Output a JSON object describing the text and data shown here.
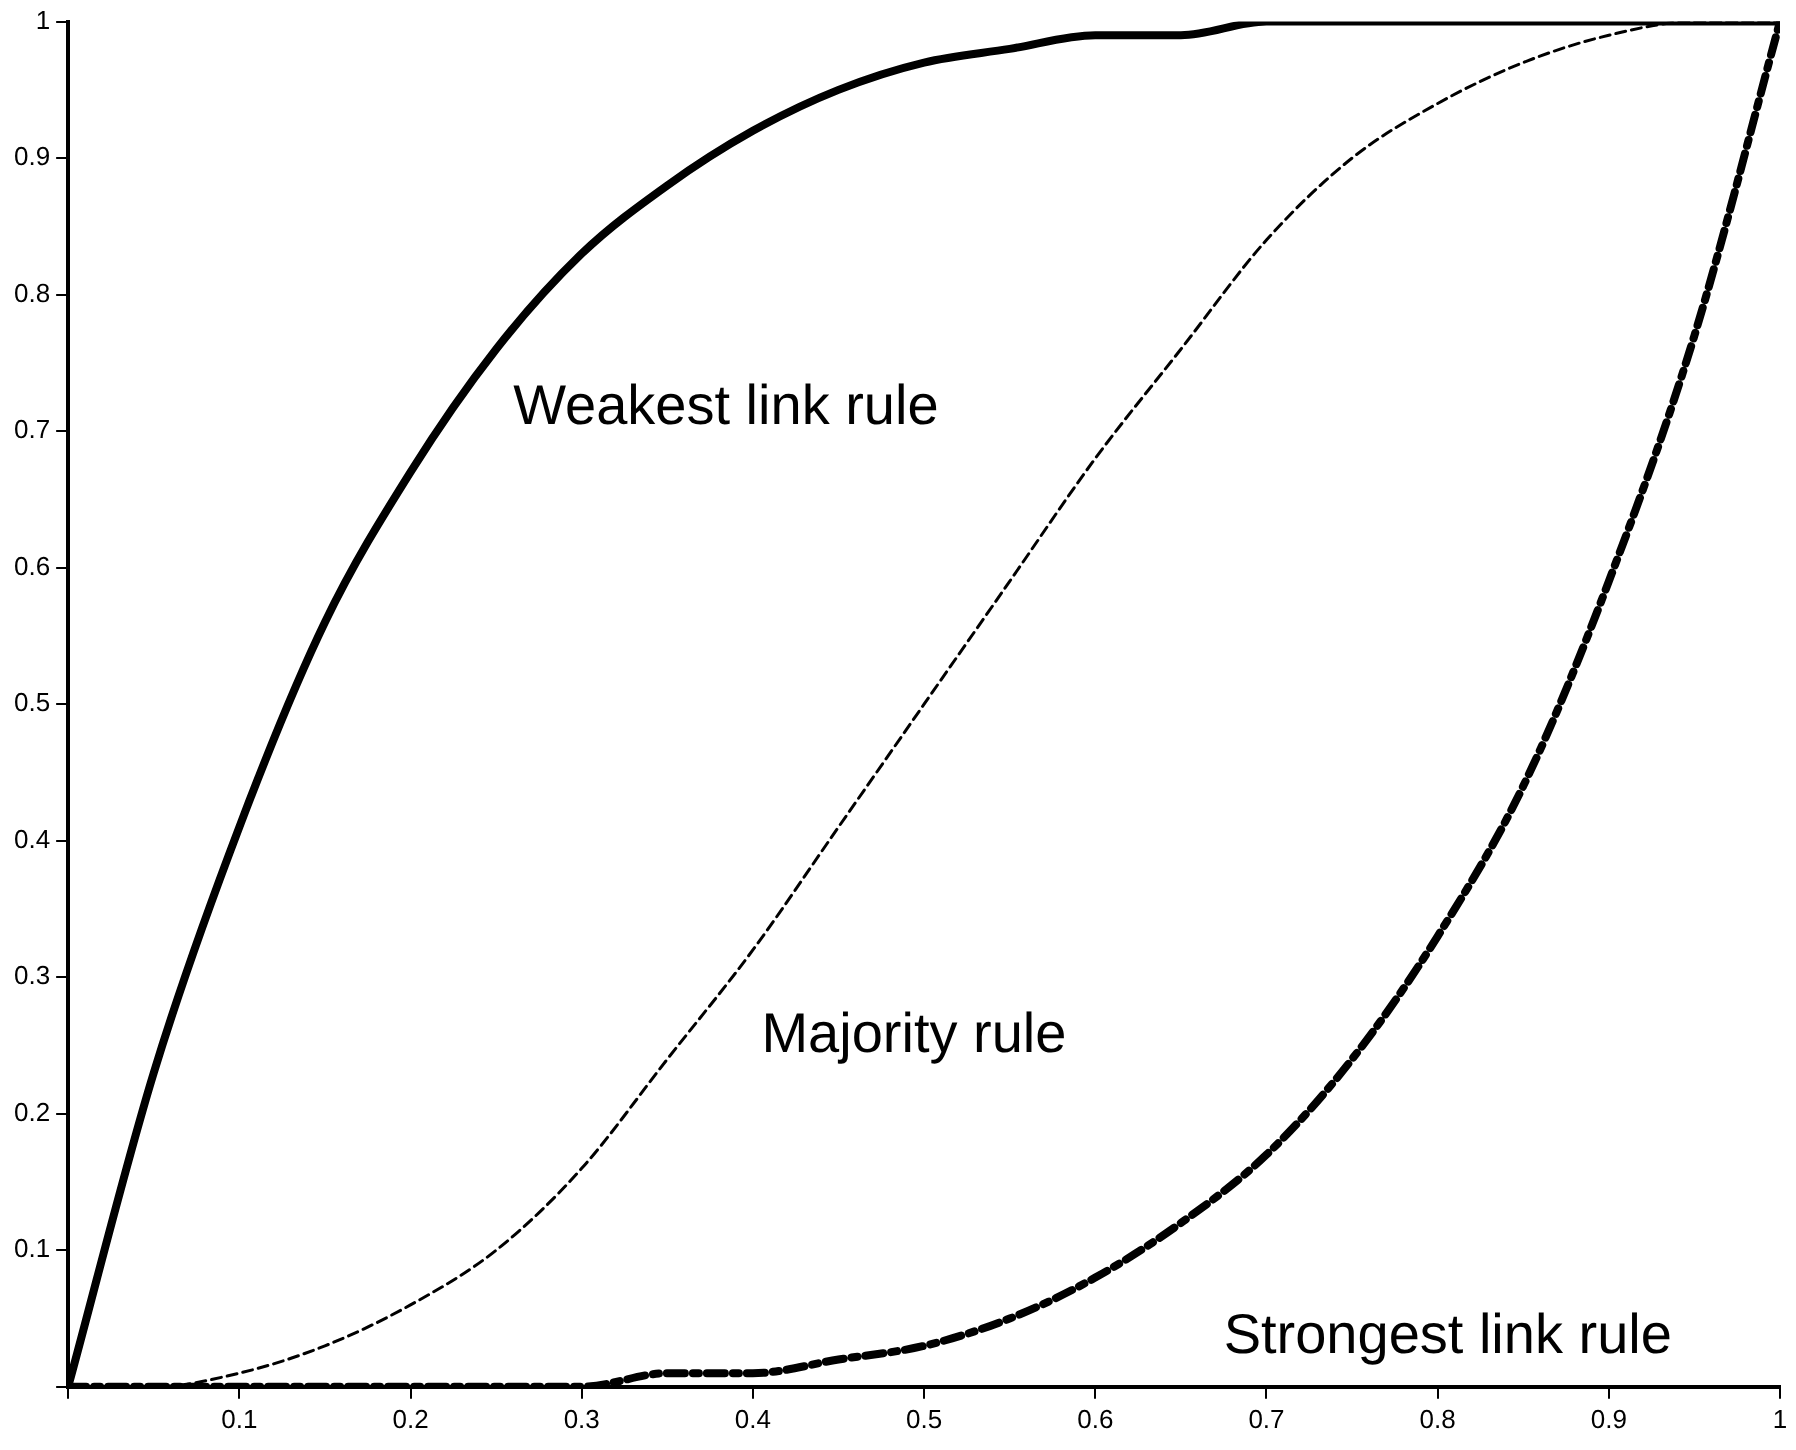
{
  "chart_data": {
    "type": "line",
    "x": [
      0,
      0.05,
      0.1,
      0.15,
      0.2,
      0.25,
      0.3,
      0.35,
      0.4,
      0.45,
      0.5,
      0.55,
      0.6,
      0.65,
      0.7,
      0.75,
      0.8,
      0.85,
      0.9,
      0.95,
      1
    ],
    "series": [
      {
        "name": "Weakest link rule",
        "color": "#000000",
        "line_style": "solid",
        "values": [
          0,
          0.23,
          0.41,
          0.56,
          0.67,
          0.76,
          0.83,
          0.88,
          0.92,
          0.95,
          0.97,
          0.98,
          0.99,
          0.99,
          1,
          1,
          1,
          1,
          1,
          1,
          1
        ]
      },
      {
        "name": "Majority rule",
        "color": "#000000",
        "line_style": "dashed",
        "values": [
          0,
          0,
          0.01,
          0.03,
          0.06,
          0.1,
          0.16,
          0.24,
          0.32,
          0.41,
          0.5,
          0.59,
          0.68,
          0.76,
          0.84,
          0.9,
          0.94,
          0.97,
          0.99,
          1,
          1
        ]
      },
      {
        "name": "Strongest link rule",
        "color": "#000000",
        "line_style": "dashdot",
        "values": [
          0,
          0,
          0,
          0,
          0,
          0,
          0,
          0.01,
          0.01,
          0.02,
          0.03,
          0.05,
          0.08,
          0.12,
          0.17,
          0.24,
          0.33,
          0.44,
          0.59,
          0.77,
          1
        ]
      }
    ],
    "xlim": [
      0,
      1
    ],
    "xticks": [
      {
        "value": 0,
        "label": null
      },
      0.1,
      0.2,
      0.3,
      0.4,
      0.5,
      0.6,
      0.7,
      0.8,
      0.9,
      1
    ],
    "ylim": [
      0,
      1
    ],
    "yticks": [
      {
        "value": 0,
        "label": null
      },
      0.1,
      0.2,
      0.3,
      0.4,
      0.5,
      0.6,
      0.7,
      0.8,
      0.9,
      1
    ],
    "grid": false,
    "legend": false,
    "marker": "none"
  }
}
